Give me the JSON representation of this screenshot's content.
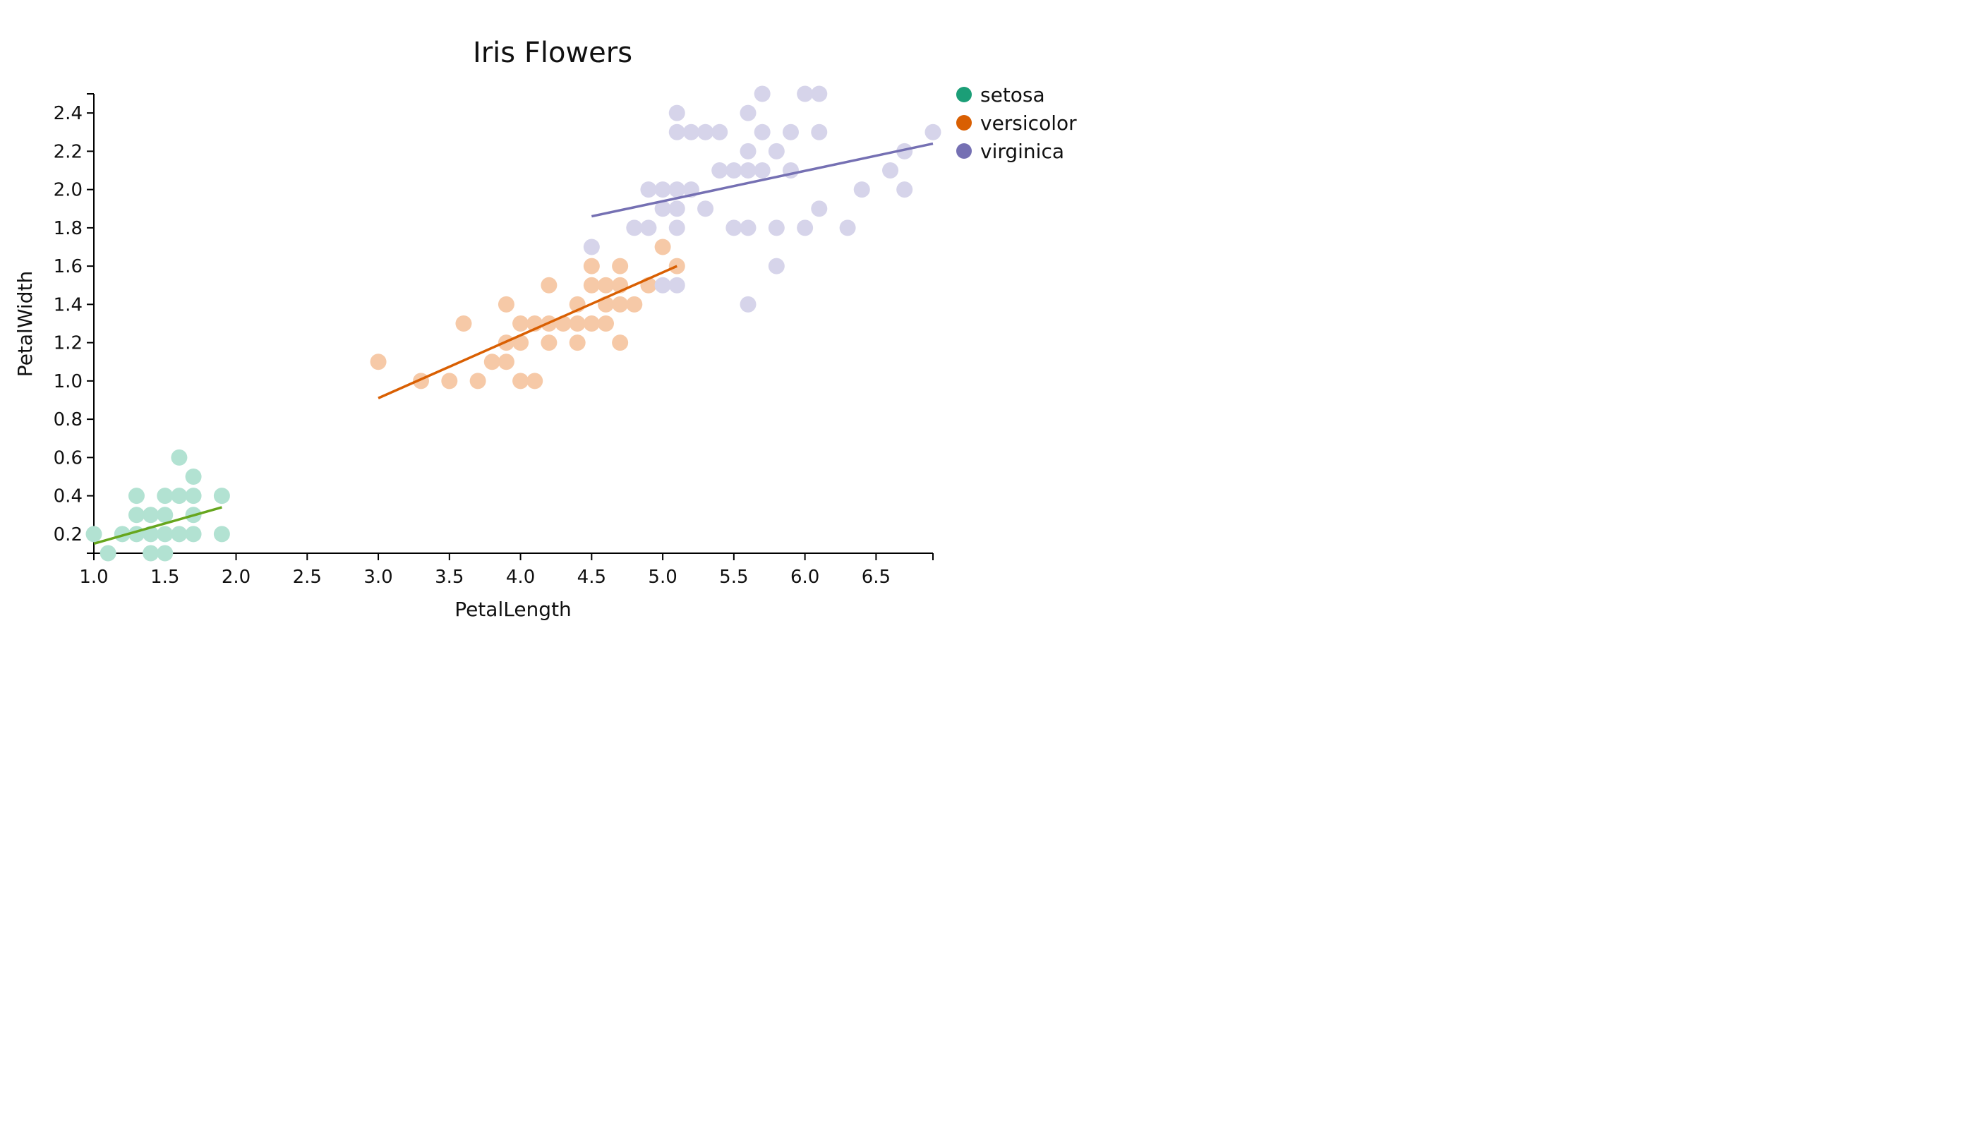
{
  "chart_data": {
    "type": "scatter",
    "title": "Iris Flowers",
    "xlabel": "PetalLength",
    "ylabel": "PetalWidth",
    "xlim": [
      1.0,
      6.9
    ],
    "ylim": [
      0.1,
      2.5
    ],
    "x_ticks": [
      "1.0",
      "1.5",
      "2.0",
      "2.5",
      "3.0",
      "3.5",
      "4.0",
      "4.5",
      "5.0",
      "5.5",
      "6.0",
      "6.5"
    ],
    "y_ticks": [
      "0.2",
      "0.4",
      "0.6",
      "0.8",
      "1.0",
      "1.2",
      "1.4",
      "1.6",
      "1.8",
      "2.0",
      "2.2",
      "2.4"
    ],
    "grid": false,
    "legend_position": "top-right",
    "series": [
      {
        "name": "setosa",
        "marker_color": "#1b9e77",
        "point_color": "#b2e2d2",
        "line_color": "#66a61e",
        "points": [
          [
            1.0,
            0.2
          ],
          [
            1.1,
            0.1
          ],
          [
            1.2,
            0.2
          ],
          [
            1.3,
            0.2
          ],
          [
            1.3,
            0.3
          ],
          [
            1.3,
            0.4
          ],
          [
            1.4,
            0.1
          ],
          [
            1.4,
            0.2
          ],
          [
            1.4,
            0.3
          ],
          [
            1.5,
            0.1
          ],
          [
            1.5,
            0.2
          ],
          [
            1.5,
            0.3
          ],
          [
            1.5,
            0.4
          ],
          [
            1.6,
            0.2
          ],
          [
            1.6,
            0.4
          ],
          [
            1.6,
            0.6
          ],
          [
            1.7,
            0.2
          ],
          [
            1.7,
            0.3
          ],
          [
            1.7,
            0.4
          ],
          [
            1.7,
            0.5
          ],
          [
            1.9,
            0.2
          ],
          [
            1.9,
            0.4
          ]
        ],
        "trend": [
          [
            1.0,
            0.15
          ],
          [
            1.9,
            0.34
          ]
        ]
      },
      {
        "name": "versicolor",
        "marker_color": "#d95f02",
        "point_color": "#f6c9a7",
        "line_color": "#d95f02",
        "points": [
          [
            3.0,
            1.1
          ],
          [
            3.3,
            1.0
          ],
          [
            3.5,
            1.0
          ],
          [
            3.6,
            1.3
          ],
          [
            3.7,
            1.0
          ],
          [
            3.8,
            1.1
          ],
          [
            3.9,
            1.1
          ],
          [
            3.9,
            1.2
          ],
          [
            3.9,
            1.4
          ],
          [
            4.0,
            1.0
          ],
          [
            4.0,
            1.2
          ],
          [
            4.0,
            1.3
          ],
          [
            4.1,
            1.0
          ],
          [
            4.1,
            1.3
          ],
          [
            4.2,
            1.2
          ],
          [
            4.2,
            1.3
          ],
          [
            4.2,
            1.5
          ],
          [
            4.3,
            1.3
          ],
          [
            4.4,
            1.2
          ],
          [
            4.4,
            1.3
          ],
          [
            4.4,
            1.4
          ],
          [
            4.5,
            1.3
          ],
          [
            4.5,
            1.5
          ],
          [
            4.5,
            1.6
          ],
          [
            4.6,
            1.3
          ],
          [
            4.6,
            1.4
          ],
          [
            4.6,
            1.5
          ],
          [
            4.7,
            1.2
          ],
          [
            4.7,
            1.4
          ],
          [
            4.7,
            1.5
          ],
          [
            4.7,
            1.6
          ],
          [
            4.8,
            1.4
          ],
          [
            4.9,
            1.5
          ],
          [
            5.0,
            1.7
          ],
          [
            5.1,
            1.6
          ]
        ],
        "trend": [
          [
            3.0,
            0.91
          ],
          [
            5.1,
            1.6
          ]
        ]
      },
      {
        "name": "virginica",
        "marker_color": "#7570b3",
        "point_color": "#d6d4ea",
        "line_color": "#7570b3",
        "points": [
          [
            4.5,
            1.7
          ],
          [
            4.8,
            1.8
          ],
          [
            4.9,
            1.8
          ],
          [
            4.9,
            2.0
          ],
          [
            5.0,
            1.5
          ],
          [
            5.0,
            1.9
          ],
          [
            5.0,
            2.0
          ],
          [
            5.1,
            1.5
          ],
          [
            5.1,
            1.8
          ],
          [
            5.1,
            1.9
          ],
          [
            5.1,
            2.0
          ],
          [
            5.1,
            2.3
          ],
          [
            5.1,
            2.4
          ],
          [
            5.2,
            2.0
          ],
          [
            5.2,
            2.3
          ],
          [
            5.3,
            1.9
          ],
          [
            5.3,
            2.3
          ],
          [
            5.4,
            2.1
          ],
          [
            5.4,
            2.3
          ],
          [
            5.5,
            1.8
          ],
          [
            5.5,
            2.1
          ],
          [
            5.6,
            1.4
          ],
          [
            5.6,
            1.8
          ],
          [
            5.6,
            2.1
          ],
          [
            5.6,
            2.2
          ],
          [
            5.6,
            2.4
          ],
          [
            5.7,
            2.1
          ],
          [
            5.7,
            2.3
          ],
          [
            5.7,
            2.5
          ],
          [
            5.8,
            1.6
          ],
          [
            5.8,
            1.8
          ],
          [
            5.8,
            2.2
          ],
          [
            5.9,
            2.1
          ],
          [
            5.9,
            2.3
          ],
          [
            6.0,
            1.8
          ],
          [
            6.0,
            2.5
          ],
          [
            6.1,
            1.9
          ],
          [
            6.1,
            2.3
          ],
          [
            6.1,
            2.5
          ],
          [
            6.3,
            1.8
          ],
          [
            6.4,
            2.0
          ],
          [
            6.6,
            2.1
          ],
          [
            6.7,
            2.0
          ],
          [
            6.7,
            2.2
          ],
          [
            6.9,
            2.3
          ]
        ],
        "trend": [
          [
            4.5,
            1.86
          ],
          [
            6.9,
            2.24
          ]
        ]
      }
    ]
  }
}
